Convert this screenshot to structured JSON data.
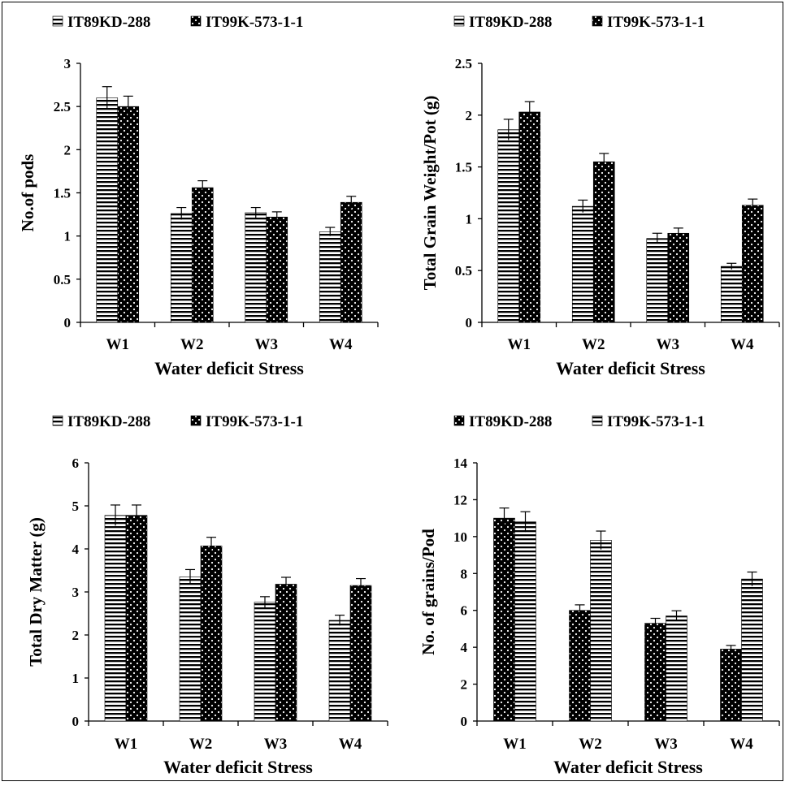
{
  "chart_data": [
    {
      "type": "bar",
      "xlabel": "Water deficit Stress",
      "ylabel": "No.of pods",
      "categories": [
        "W1",
        "W2",
        "W3",
        "W4"
      ],
      "ylim": [
        0,
        3
      ],
      "yticks": [
        "0",
        "0.5",
        "1",
        "1.5",
        "2",
        "2.5",
        "3"
      ],
      "series": [
        {
          "name": "IT89KD-288",
          "pattern": "hstripe",
          "values": [
            2.6,
            1.26,
            1.27,
            1.05
          ],
          "errors": [
            0.13,
            0.07,
            0.06,
            0.05
          ]
        },
        {
          "name": "IT99K-573-1-1",
          "pattern": "dots",
          "values": [
            2.5,
            1.56,
            1.22,
            1.39
          ],
          "errors": [
            0.12,
            0.08,
            0.06,
            0.07
          ]
        }
      ]
    },
    {
      "type": "bar",
      "xlabel": "Water deficit Stress",
      "ylabel": "Total Grain Weight/Pot (g)",
      "categories": [
        "W1",
        "W2",
        "W3",
        "W4"
      ],
      "ylim": [
        0,
        2.5
      ],
      "yticks": [
        "0",
        "0.5",
        "1",
        "1.5",
        "2",
        "2.5"
      ],
      "series": [
        {
          "name": "IT89KD-288",
          "pattern": "hstripe",
          "values": [
            1.86,
            1.12,
            0.81,
            0.54
          ],
          "errors": [
            0.1,
            0.06,
            0.05,
            0.03
          ]
        },
        {
          "name": "IT99K-573-1-1",
          "pattern": "dots",
          "values": [
            2.03,
            1.55,
            0.86,
            1.13
          ],
          "errors": [
            0.1,
            0.08,
            0.05,
            0.06
          ]
        }
      ]
    },
    {
      "type": "bar",
      "xlabel": "Water deficit Stress",
      "ylabel": "Total Dry Matter (g)",
      "categories": [
        "W1",
        "W2",
        "W3",
        "W4"
      ],
      "ylim": [
        0,
        6
      ],
      "yticks": [
        "0",
        "1",
        "2",
        "3",
        "4",
        "5",
        "6"
      ],
      "series": [
        {
          "name": "IT89KD-288",
          "pattern": "hstripe",
          "values": [
            4.78,
            3.35,
            2.76,
            2.34
          ],
          "errors": [
            0.24,
            0.17,
            0.13,
            0.12
          ]
        },
        {
          "name": "IT99K-573-1-1",
          "pattern": "dots",
          "values": [
            4.78,
            4.07,
            3.18,
            3.15
          ],
          "errors": [
            0.24,
            0.2,
            0.16,
            0.16
          ]
        }
      ]
    },
    {
      "type": "bar",
      "xlabel": "Water deficit Stress",
      "ylabel": "No. of grains/Pod",
      "categories": [
        "W1",
        "W2",
        "W3",
        "W4"
      ],
      "ylim": [
        0,
        14
      ],
      "yticks": [
        "0",
        "2",
        "4",
        "6",
        "8",
        "10",
        "12",
        "14"
      ],
      "series": [
        {
          "name": "IT89KD-288",
          "pattern": "dots",
          "values": [
            11.0,
            6.0,
            5.3,
            3.9
          ],
          "errors": [
            0.55,
            0.3,
            0.27,
            0.2
          ]
        },
        {
          "name": "IT99K-573-1-1",
          "pattern": "hstripe",
          "values": [
            10.8,
            9.8,
            5.7,
            7.7
          ],
          "errors": [
            0.55,
            0.5,
            0.28,
            0.38
          ]
        }
      ]
    }
  ]
}
